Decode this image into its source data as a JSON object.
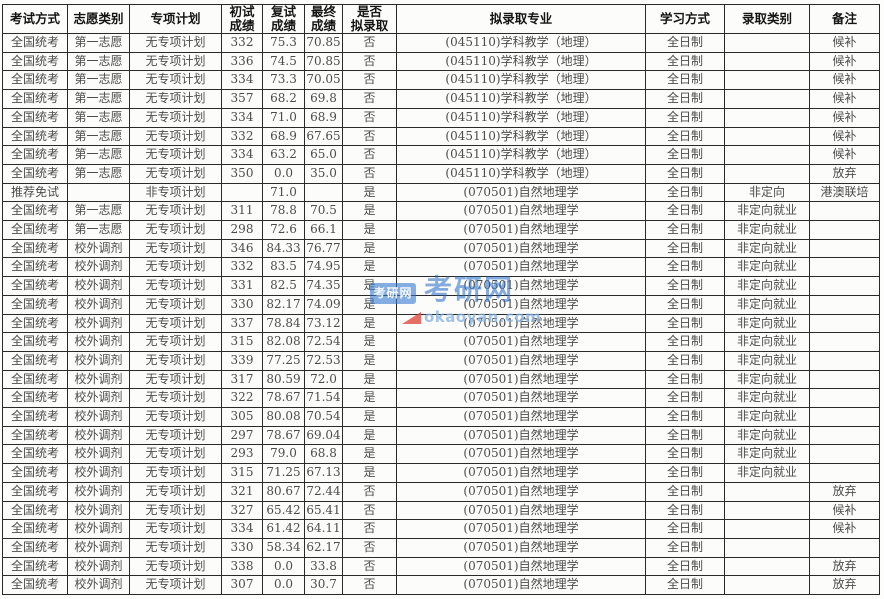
{
  "table": {
    "headers": [
      "考试方式",
      "志愿类别",
      "专项计划",
      "初试\n成绩",
      "复试\n成绩",
      "最终\n成绩",
      "是否\n拟录取",
      "拟录取专业",
      "学习方式",
      "录取类别",
      "备注"
    ],
    "rows": [
      [
        "全国统考",
        "第一志愿",
        "无专项计划",
        "332",
        "75.3",
        "70.85",
        "否",
        "(045110)学科教学（地理）",
        "全日制",
        "",
        "候补"
      ],
      [
        "全国统考",
        "第一志愿",
        "无专项计划",
        "336",
        "74.5",
        "70.85",
        "否",
        "(045110)学科教学（地理）",
        "全日制",
        "",
        "候补"
      ],
      [
        "全国统考",
        "第一志愿",
        "无专项计划",
        "334",
        "73.3",
        "70.05",
        "否",
        "(045110)学科教学（地理）",
        "全日制",
        "",
        "候补"
      ],
      [
        "全国统考",
        "第一志愿",
        "无专项计划",
        "357",
        "68.2",
        "69.8",
        "否",
        "(045110)学科教学（地理）",
        "全日制",
        "",
        "候补"
      ],
      [
        "全国统考",
        "第一志愿",
        "无专项计划",
        "334",
        "71.0",
        "68.9",
        "否",
        "(045110)学科教学（地理）",
        "全日制",
        "",
        "候补"
      ],
      [
        "全国统考",
        "第一志愿",
        "无专项计划",
        "332",
        "68.9",
        "67.65",
        "否",
        "(045110)学科教学（地理）",
        "全日制",
        "",
        "候补"
      ],
      [
        "全国统考",
        "第一志愿",
        "无专项计划",
        "334",
        "63.2",
        "65.0",
        "否",
        "(045110)学科教学（地理）",
        "全日制",
        "",
        "候补"
      ],
      [
        "全国统考",
        "第一志愿",
        "无专项计划",
        "350",
        "0.0",
        "35.0",
        "否",
        "(045110)学科教学（地理）",
        "全日制",
        "",
        "放弃"
      ],
      [
        "推荐免试",
        "",
        "非专项计划",
        "",
        "71.0",
        "",
        "是",
        "(070501)自然地理学",
        "全日制",
        "非定向",
        "港澳联培"
      ],
      [
        "全国统考",
        "第一志愿",
        "无专项计划",
        "311",
        "78.8",
        "70.5",
        "是",
        "(070501)自然地理学",
        "全日制",
        "非定向就业",
        ""
      ],
      [
        "全国统考",
        "第一志愿",
        "无专项计划",
        "298",
        "72.6",
        "66.1",
        "是",
        "(070501)自然地理学",
        "全日制",
        "非定向就业",
        ""
      ],
      [
        "全国统考",
        "校外调剂",
        "无专项计划",
        "346",
        "84.33",
        "76.77",
        "是",
        "(070501)自然地理学",
        "全日制",
        "非定向就业",
        ""
      ],
      [
        "全国统考",
        "校外调剂",
        "无专项计划",
        "332",
        "83.5",
        "74.95",
        "是",
        "(070501)自然地理学",
        "全日制",
        "非定向就业",
        ""
      ],
      [
        "全国统考",
        "校外调剂",
        "无专项计划",
        "331",
        "82.5",
        "74.35",
        "是",
        "(070501)自然地理学",
        "全日制",
        "非定向就业",
        ""
      ],
      [
        "全国统考",
        "校外调剂",
        "无专项计划",
        "330",
        "82.17",
        "74.09",
        "是",
        "(070501)自然地理学",
        "全日制",
        "非定向就业",
        ""
      ],
      [
        "全国统考",
        "校外调剂",
        "无专项计划",
        "337",
        "78.84",
        "73.12",
        "是",
        "(070501)自然地理学",
        "全日制",
        "非定向就业",
        ""
      ],
      [
        "全国统考",
        "校外调剂",
        "无专项计划",
        "315",
        "82.08",
        "72.54",
        "是",
        "(070501)自然地理学",
        "全日制",
        "非定向就业",
        ""
      ],
      [
        "全国统考",
        "校外调剂",
        "无专项计划",
        "339",
        "77.25",
        "72.53",
        "是",
        "(070501)自然地理学",
        "全日制",
        "非定向就业",
        ""
      ],
      [
        "全国统考",
        "校外调剂",
        "无专项计划",
        "317",
        "80.59",
        "72.0",
        "是",
        "(070501)自然地理学",
        "全日制",
        "非定向就业",
        ""
      ],
      [
        "全国统考",
        "校外调剂",
        "无专项计划",
        "322",
        "78.67",
        "71.54",
        "是",
        "(070501)自然地理学",
        "全日制",
        "非定向就业",
        ""
      ],
      [
        "全国统考",
        "校外调剂",
        "无专项计划",
        "305",
        "80.08",
        "70.54",
        "是",
        "(070501)自然地理学",
        "全日制",
        "非定向就业",
        ""
      ],
      [
        "全国统考",
        "校外调剂",
        "无专项计划",
        "297",
        "78.67",
        "69.04",
        "是",
        "(070501)自然地理学",
        "全日制",
        "非定向就业",
        ""
      ],
      [
        "全国统考",
        "校外调剂",
        "无专项计划",
        "293",
        "79.0",
        "68.8",
        "是",
        "(070501)自然地理学",
        "全日制",
        "非定向就业",
        ""
      ],
      [
        "全国统考",
        "校外调剂",
        "无专项计划",
        "315",
        "71.25",
        "67.13",
        "是",
        "(070501)自然地理学",
        "全日制",
        "非定向就业",
        ""
      ],
      [
        "全国统考",
        "校外调剂",
        "无专项计划",
        "321",
        "80.67",
        "72.44",
        "否",
        "(070501)自然地理学",
        "全日制",
        "",
        "放弃"
      ],
      [
        "全国统考",
        "校外调剂",
        "无专项计划",
        "327",
        "65.42",
        "65.41",
        "否",
        "(070501)自然地理学",
        "全日制",
        "",
        "候补"
      ],
      [
        "全国统考",
        "校外调剂",
        "无专项计划",
        "334",
        "61.42",
        "64.11",
        "否",
        "(070501)自然地理学",
        "全日制",
        "",
        "候补"
      ],
      [
        "全国统考",
        "校外调剂",
        "无专项计划",
        "330",
        "58.34",
        "62.17",
        "否",
        "(070501)自然地理学",
        "全日制",
        "",
        ""
      ],
      [
        "全国统考",
        "校外调剂",
        "无专项计划",
        "338",
        "0.0",
        "33.8",
        "否",
        "(070501)自然地理学",
        "全日制",
        "",
        "放弃"
      ],
      [
        "全国统考",
        "校外调剂",
        "无专项计划",
        "307",
        "0.0",
        "30.7",
        "否",
        "(070501)自然地理学",
        "全日制",
        "",
        "放弃"
      ]
    ]
  },
  "watermark": {
    "badge_text": "考研网",
    "logo_text": "考研网",
    "site": "okaoyan.com",
    "logo_blue": "#2d70c8",
    "accent_red": "#de463a"
  }
}
